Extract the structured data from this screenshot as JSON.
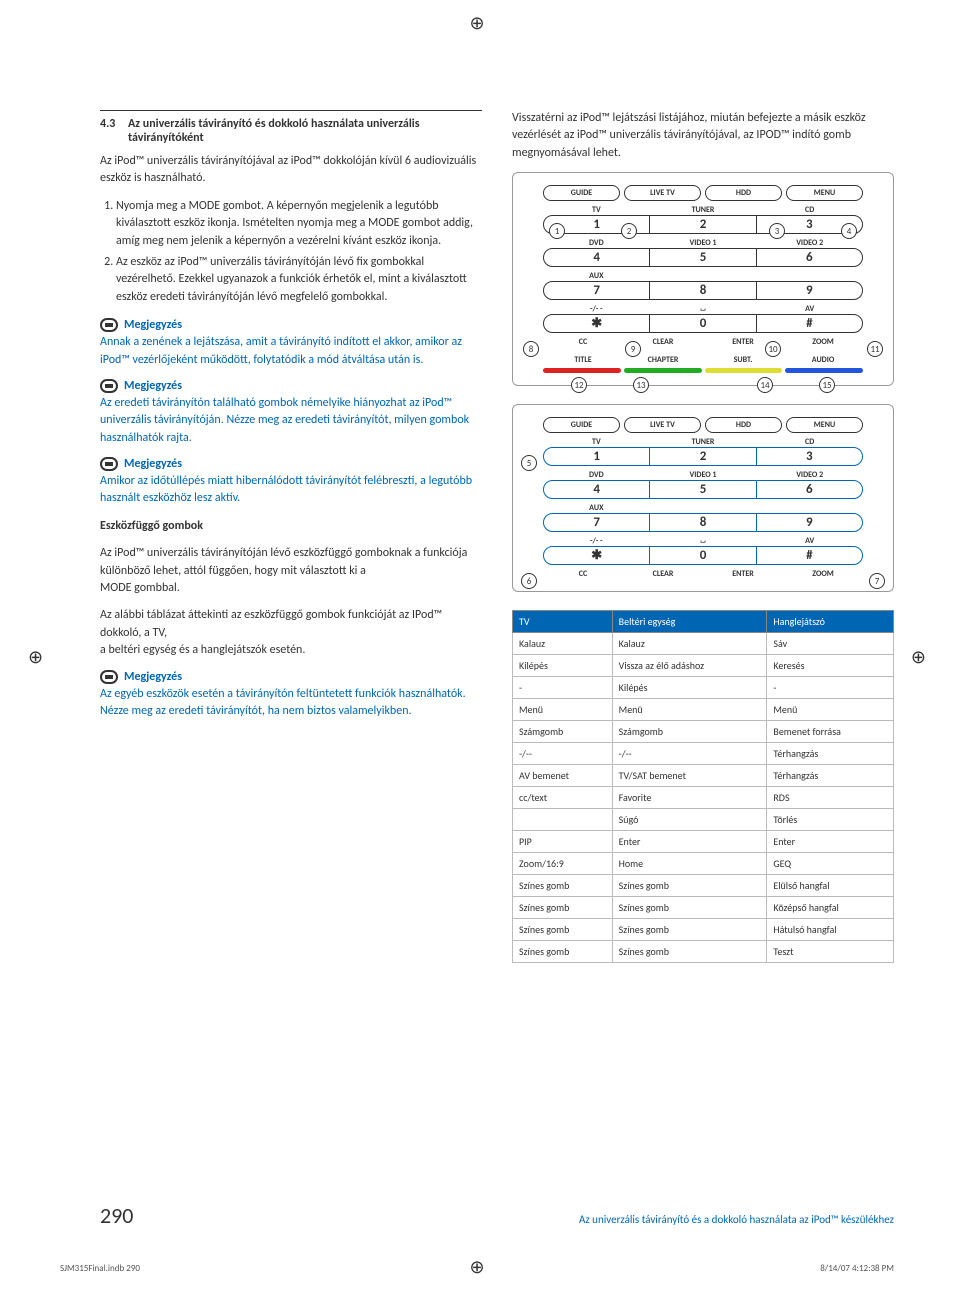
{
  "left": {
    "section_num": "4.3",
    "section_title": "Az univerzális távirányító és dokkoló használata univerzális távirányítóként",
    "intro": "Az iPod™ univerzális távirányítójával az iPod™ dokkolóján kívül 6 audiovizuális eszköz is használható.",
    "step1": "Nyomja meg a MODE gombot. A képernyőn megjelenik a legutóbb kiválasztott eszköz ikonja. Ismételten nyomja meg a MODE gombot addig, amíg meg nem jelenik a képernyőn a vezérelni kívánt eszköz ikonja.",
    "step2": "Az eszköz az iPod™ univerzális távirányítóján lévő fix gombokkal vezérelhető. Ezekkel ugyanazok a funkciók érhetők el, mint a kiválasztott eszköz eredeti távirányítóján lévő megfelelő gombokkal.",
    "note_label": "Megjegyzés",
    "note1": "Annak a zenének a lejátszása, amit a távirányító indított el akkor, amikor az iPod™ vezérlőjeként működött, folytatódik a mód átváltása után is.",
    "note2": "Az eredeti távirányítón található gombok némelyike hiányozhat az iPod™ univerzális távirányítóján. Nézze meg az eredeti távirányítót, milyen gombok használhatók rajta.",
    "note3": "Amikor az időtúllépés miatt hibernálódott távirányítót felébreszti, a legutóbb használt eszközhöz lesz aktív.",
    "devdep_title": "Eszközfüggő gombok",
    "devdep_p1": "Az iPod™ univerzális távirányítóján lévő eszközfüggő gomboknak a funkciója különböző lehet, attól függően, hogy mit választott ki a",
    "devdep_p1b": "MODE gombbal.",
    "devdep_p2": "Az alábbi táblázat áttekinti az eszközfüggő gombok funkcióját az IPod™ dokkoló, a TV,",
    "devdep_p2b": "a beltéri egység és a hanglejátszók esetén.",
    "note4": "Az egyéb eszközök esetén a távirányítón feltüntetett funkciók használhatók. Nézze meg az eredeti távirányítót, ha nem biztos valamelyikben."
  },
  "right": {
    "intro": "Visszatérni az iPod™ lejátszási listájához, miután befejezte a másik eszköz vezérlését az iPod™ univerzális távirányítójával, az IPOD™ indító gomb megnyomásával lehet.",
    "remote_labels": {
      "r1": [
        "GUIDE",
        "LIVE TV",
        "HDD",
        "MENU"
      ],
      "top_lbls": [
        "TV",
        "TUNER",
        "CD"
      ],
      "row_a": [
        "1",
        "2",
        "3"
      ],
      "mid_lbls": [
        "DVD",
        "VIDEO 1",
        "VIDEO 2"
      ],
      "row_b": [
        "4",
        "5",
        "6"
      ],
      "aux": "AUX",
      "row_c": [
        "7",
        "8",
        "9"
      ],
      "bot_lbls": [
        "-/- -",
        "⏘",
        "AV"
      ],
      "row_d": [
        "✱",
        "0",
        "#"
      ],
      "func": [
        "CC",
        "CLEAR",
        "ENTER",
        "ZOOM"
      ],
      "func2": [
        "TITLE",
        "CHAPTER",
        "SUBT.",
        "AUDIO"
      ]
    },
    "colors": [
      "#d22",
      "#2a2",
      "#dd3",
      "#25d"
    ],
    "callouts1": {
      "c1": "1",
      "c2": "2",
      "c3": "3",
      "c4": "4",
      "c8": "8",
      "c9": "9",
      "c10": "10",
      "c11": "11",
      "c12": "12",
      "c13": "13",
      "c14": "14",
      "c15": "15"
    },
    "callouts2": {
      "c5": "5",
      "c6": "6",
      "c7": "7"
    }
  },
  "table": {
    "headers": [
      "TV",
      "Beltéri egység",
      "Hanglejátszó"
    ],
    "rows": [
      [
        "Kalauz",
        "Kalauz",
        "Sáv"
      ],
      [
        "Kilépés",
        "Vissza az élő adáshoz",
        "Keresés"
      ],
      [
        "-",
        "Kilépés",
        "-"
      ],
      [
        "Menü",
        "Menü",
        "Menü"
      ],
      [
        "Számgomb",
        "Számgomb",
        "Bemenet forrása"
      ],
      [
        "-/--",
        "-/--",
        "Térhangzás"
      ],
      [
        "AV bemenet",
        "TV/SAT bemenet",
        "Térhangzás"
      ],
      [
        "cc/text",
        "Favorite",
        "RDS"
      ],
      [
        "",
        "Súgó",
        "Törlés"
      ],
      [
        "PIP",
        "Enter",
        "Enter"
      ],
      [
        "Zoom/16:9",
        "Home",
        "GEQ"
      ],
      [
        "Színes gomb",
        "Színes gomb",
        "Elülső hangfal"
      ],
      [
        "Színes gomb",
        "Színes gomb",
        "Középső hangfal"
      ],
      [
        "Színes gomb",
        "Színes gomb",
        "Hátulsó hangfal"
      ],
      [
        "Színes gomb",
        "Színes gomb",
        "Teszt"
      ]
    ]
  },
  "footer": {
    "page": "290",
    "text": "Az univerzális távirányító és a dokkoló használata az iPod™ készülékhez",
    "file": "SJM315Final.indb   290",
    "date": "8/14/07   4:12:38 PM"
  }
}
